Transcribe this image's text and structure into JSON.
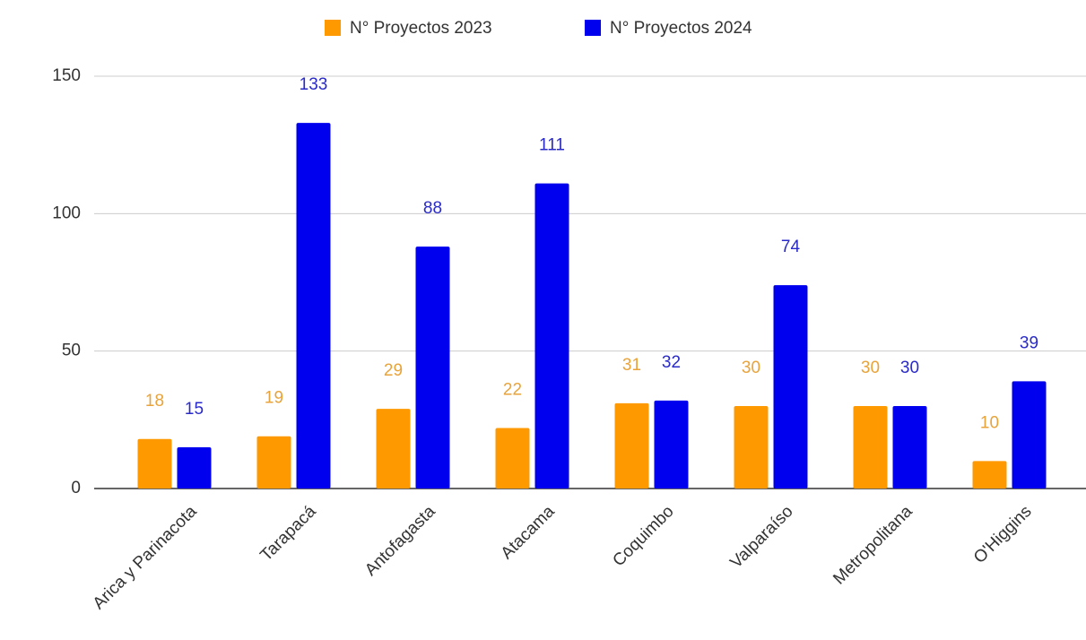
{
  "chart_data": {
    "type": "bar",
    "categories": [
      "Arica y Parinacota",
      "Tarapacá",
      "Antofagasta",
      "Atacama",
      "Coquimbo",
      "Valparaíso",
      "Metropolitana",
      "O'Higgins"
    ],
    "series": [
      {
        "name": "N° Proyectos 2023",
        "color": "#ff9900",
        "label_color": "#e8a33a",
        "values": [
          18,
          19,
          29,
          22,
          31,
          30,
          30,
          10
        ]
      },
      {
        "name": "N° Proyectos 2024",
        "color": "#0000ee",
        "label_color": "#2a2ac8",
        "values": [
          15,
          133,
          88,
          111,
          32,
          74,
          30,
          39
        ]
      }
    ],
    "ylim": [
      0,
      150
    ],
    "yticks": [
      0,
      50,
      100,
      150
    ],
    "grid": true,
    "legend": "top"
  }
}
